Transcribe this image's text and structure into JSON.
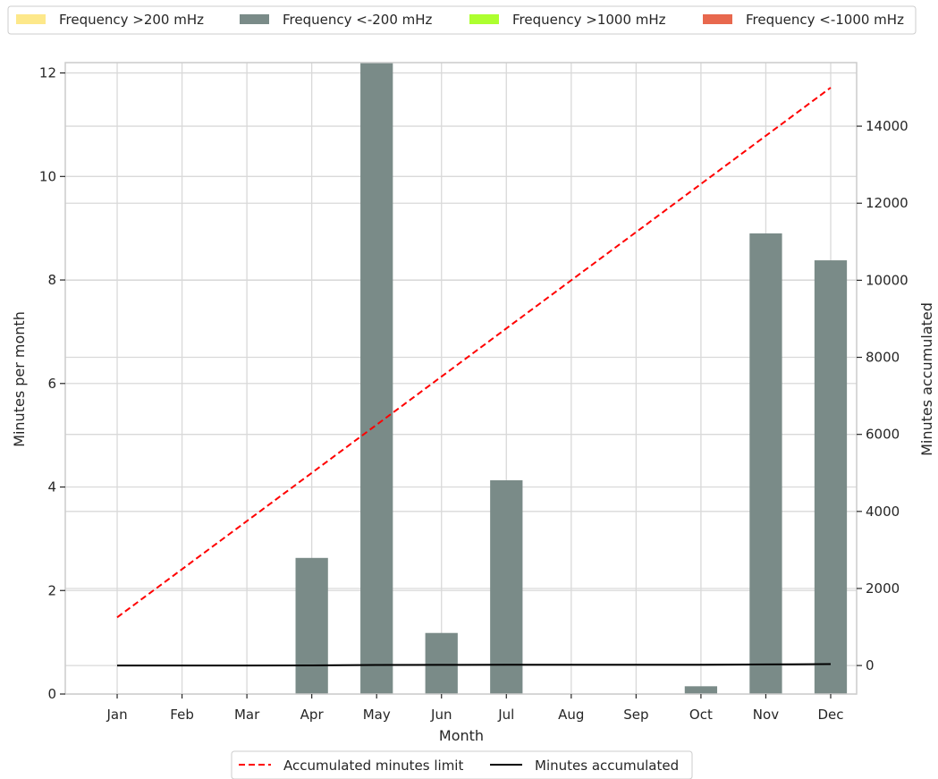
{
  "chart_data": {
    "type": "bar",
    "categories": [
      "Jan",
      "Feb",
      "Mar",
      "Apr",
      "May",
      "Jun",
      "Jul",
      "Aug",
      "Sep",
      "Oct",
      "Nov",
      "Dec"
    ],
    "xlabel": "Month",
    "ylabel": "Minutes per month",
    "y2label": "Minutes accumulated",
    "ylim": [
      0,
      12.2
    ],
    "y2lim": [
      -740,
      15650
    ],
    "yticks": [
      0,
      2,
      4,
      6,
      8,
      10,
      12
    ],
    "y2ticks": [
      0,
      2000,
      4000,
      6000,
      8000,
      10000,
      12000,
      14000
    ],
    "grid": true,
    "bar_series": [
      {
        "name": "Frequency >200 mHz",
        "color": "#fde88a",
        "values": [
          0,
          0,
          0,
          0,
          0,
          0,
          0,
          0,
          0,
          0,
          0,
          0
        ]
      },
      {
        "name": "Frequency <-200 mHz",
        "color": "#7a8b88",
        "values": [
          0,
          0,
          0,
          2.63,
          12.2,
          1.18,
          4.13,
          0,
          0,
          0.15,
          8.9,
          8.38
        ]
      },
      {
        "name": "Frequency >1000 mHz",
        "color": "#adff2f",
        "values": [
          0,
          0,
          0,
          0,
          0,
          0,
          0,
          0,
          0,
          0,
          0,
          0
        ]
      },
      {
        "name": "Frequency <-1000 mHz",
        "color": "#e8684e",
        "values": [
          0,
          0,
          0,
          0,
          0,
          0,
          0,
          0,
          0,
          0,
          0,
          0
        ]
      }
    ],
    "line_series": [
      {
        "name": "Accumulated minutes limit",
        "color": "#ff0000",
        "style": "dashed",
        "values": [
          1250,
          2500,
          3750,
          5000,
          6250,
          7500,
          8750,
          10000,
          11250,
          12500,
          13750,
          15000
        ]
      },
      {
        "name": "Minutes accumulated",
        "color": "#000000",
        "style": "solid",
        "values": [
          0,
          0,
          0,
          3,
          15,
          16,
          20,
          20,
          20,
          20,
          29,
          37
        ]
      }
    ],
    "top_legend_placement": "top",
    "bottom_legend_placement": "bottom"
  }
}
